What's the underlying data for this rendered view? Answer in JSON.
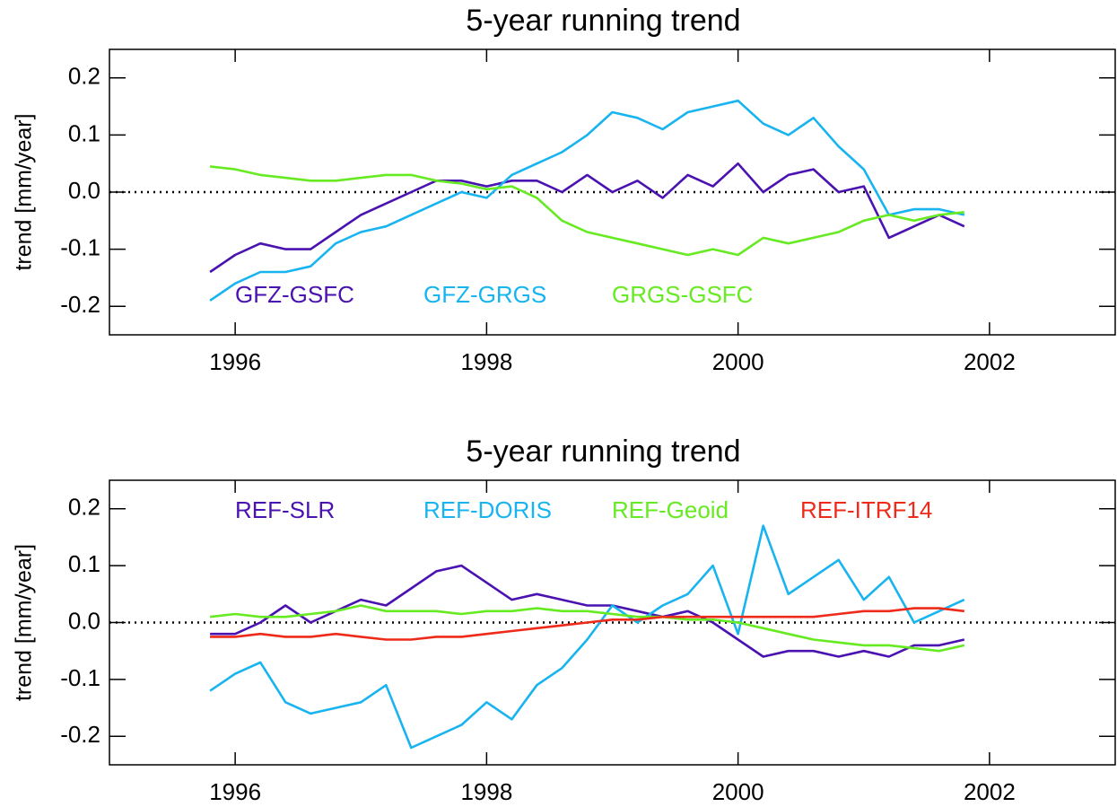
{
  "chart_data": [
    {
      "type": "line",
      "title": "5-year running trend",
      "y_label": "trend [mm/year]",
      "x": [
        1995.8,
        1996.0,
        1996.2,
        1996.4,
        1996.6,
        1996.8,
        1997.0,
        1997.2,
        1997.4,
        1997.6,
        1997.8,
        1998.0,
        1998.2,
        1998.4,
        1998.6,
        1998.8,
        1999.0,
        1999.2,
        1999.4,
        1999.6,
        1999.8,
        2000.0,
        2000.2,
        2000.4,
        2000.6,
        2000.8,
        2001.0,
        2001.2,
        2001.4,
        2001.6,
        2001.8
      ],
      "series": [
        {
          "name": "GFZ-GSFC",
          "color": "#4a12b0",
          "values": [
            -0.14,
            -0.11,
            -0.09,
            -0.1,
            -0.1,
            -0.07,
            -0.04,
            -0.02,
            0.0,
            0.02,
            0.02,
            0.01,
            0.02,
            0.02,
            0.0,
            0.03,
            0.0,
            0.02,
            -0.01,
            0.03,
            0.01,
            0.05,
            0.0,
            0.03,
            0.04,
            0.0,
            0.01,
            -0.08,
            -0.06,
            -0.04,
            -0.06
          ]
        },
        {
          "name": "GFZ-GRGS",
          "color": "#18b4f0",
          "values": [
            -0.19,
            -0.16,
            -0.14,
            -0.14,
            -0.13,
            -0.09,
            -0.07,
            -0.06,
            -0.04,
            -0.02,
            0.0,
            -0.01,
            0.03,
            0.05,
            0.07,
            0.1,
            0.14,
            0.13,
            0.11,
            0.14,
            0.15,
            0.16,
            0.12,
            0.1,
            0.13,
            0.08,
            0.04,
            -0.04,
            -0.03,
            -0.03,
            -0.04
          ]
        },
        {
          "name": "GRGS-GSFC",
          "color": "#66ea22",
          "values": [
            0.045,
            0.04,
            0.03,
            0.025,
            0.02,
            0.02,
            0.025,
            0.03,
            0.03,
            0.02,
            0.015,
            0.005,
            0.01,
            -0.01,
            -0.05,
            -0.07,
            -0.08,
            -0.09,
            -0.1,
            -0.11,
            -0.1,
            -0.11,
            -0.08,
            -0.09,
            -0.08,
            -0.07,
            -0.05,
            -0.04,
            -0.05,
            -0.04,
            -0.035
          ]
        }
      ],
      "xlim": [
        1995,
        2003
      ],
      "xticks": [
        1996,
        1998,
        2000,
        2002
      ],
      "ylim": [
        -0.25,
        0.25
      ],
      "yticks": [
        -0.2,
        -0.1,
        {
          "value": 0,
          "label": "0.0"
        },
        0.1,
        0.2
      ],
      "zero_line": true,
      "legend": "lower left"
    },
    {
      "type": "line",
      "title": "5-year running trend",
      "y_label": "trend [mm/year]",
      "x": [
        1995.8,
        1996.0,
        1996.2,
        1996.4,
        1996.6,
        1996.8,
        1997.0,
        1997.2,
        1997.4,
        1997.6,
        1997.8,
        1998.0,
        1998.2,
        1998.4,
        1998.6,
        1998.8,
        1999.0,
        1999.2,
        1999.4,
        1999.6,
        1999.8,
        2000.0,
        2000.2,
        2000.4,
        2000.6,
        2000.8,
        2001.0,
        2001.2,
        2001.4,
        2001.6,
        2001.8
      ],
      "series": [
        {
          "name": "REF-SLR",
          "color": "#4a12b0",
          "values": [
            -0.02,
            -0.02,
            0.0,
            0.03,
            0.0,
            0.02,
            0.04,
            0.03,
            0.06,
            0.09,
            0.1,
            0.07,
            0.04,
            0.05,
            0.04,
            0.03,
            0.03,
            0.02,
            0.01,
            0.02,
            0.0,
            -0.03,
            -0.06,
            -0.05,
            -0.05,
            -0.06,
            -0.05,
            -0.06,
            -0.04,
            -0.04,
            -0.03
          ]
        },
        {
          "name": "REF-DORIS",
          "color": "#18b4f0",
          "values": [
            -0.12,
            -0.09,
            -0.07,
            -0.14,
            -0.16,
            -0.15,
            -0.14,
            -0.11,
            -0.22,
            -0.2,
            -0.18,
            -0.14,
            -0.17,
            -0.11,
            -0.08,
            -0.03,
            0.03,
            0.0,
            0.03,
            0.05,
            0.1,
            -0.02,
            0.17,
            0.05,
            0.08,
            0.11,
            0.04,
            0.08,
            0.0,
            0.02,
            0.04
          ]
        },
        {
          "name": "REF-Geoid",
          "color": "#66ea22",
          "values": [
            0.01,
            0.015,
            0.01,
            0.01,
            0.015,
            0.02,
            0.03,
            0.02,
            0.02,
            0.02,
            0.015,
            0.02,
            0.02,
            0.025,
            0.02,
            0.02,
            0.015,
            0.01,
            0.01,
            0.005,
            0.005,
            0.0,
            -0.01,
            -0.02,
            -0.03,
            -0.035,
            -0.04,
            -0.04,
            -0.045,
            -0.05,
            -0.04
          ]
        },
        {
          "name": "REF-ITRF14",
          "color": "#ee2a1a",
          "values": [
            -0.025,
            -0.025,
            -0.02,
            -0.025,
            -0.025,
            -0.02,
            -0.025,
            -0.03,
            -0.03,
            -0.025,
            -0.025,
            -0.02,
            -0.015,
            -0.01,
            -0.005,
            0.0,
            0.005,
            0.005,
            0.01,
            0.01,
            0.01,
            0.01,
            0.01,
            0.01,
            0.01,
            0.015,
            0.02,
            0.02,
            0.025,
            0.025,
            0.02
          ]
        }
      ],
      "xlim": [
        1995,
        2003
      ],
      "xticks": [
        1996,
        1998,
        2000,
        2002
      ],
      "ylim": [
        -0.25,
        0.25
      ],
      "yticks": [
        -0.2,
        -0.1,
        {
          "value": 0,
          "label": "0.0"
        },
        0.1,
        0.2
      ],
      "zero_line": true,
      "legend": "upper left"
    }
  ]
}
